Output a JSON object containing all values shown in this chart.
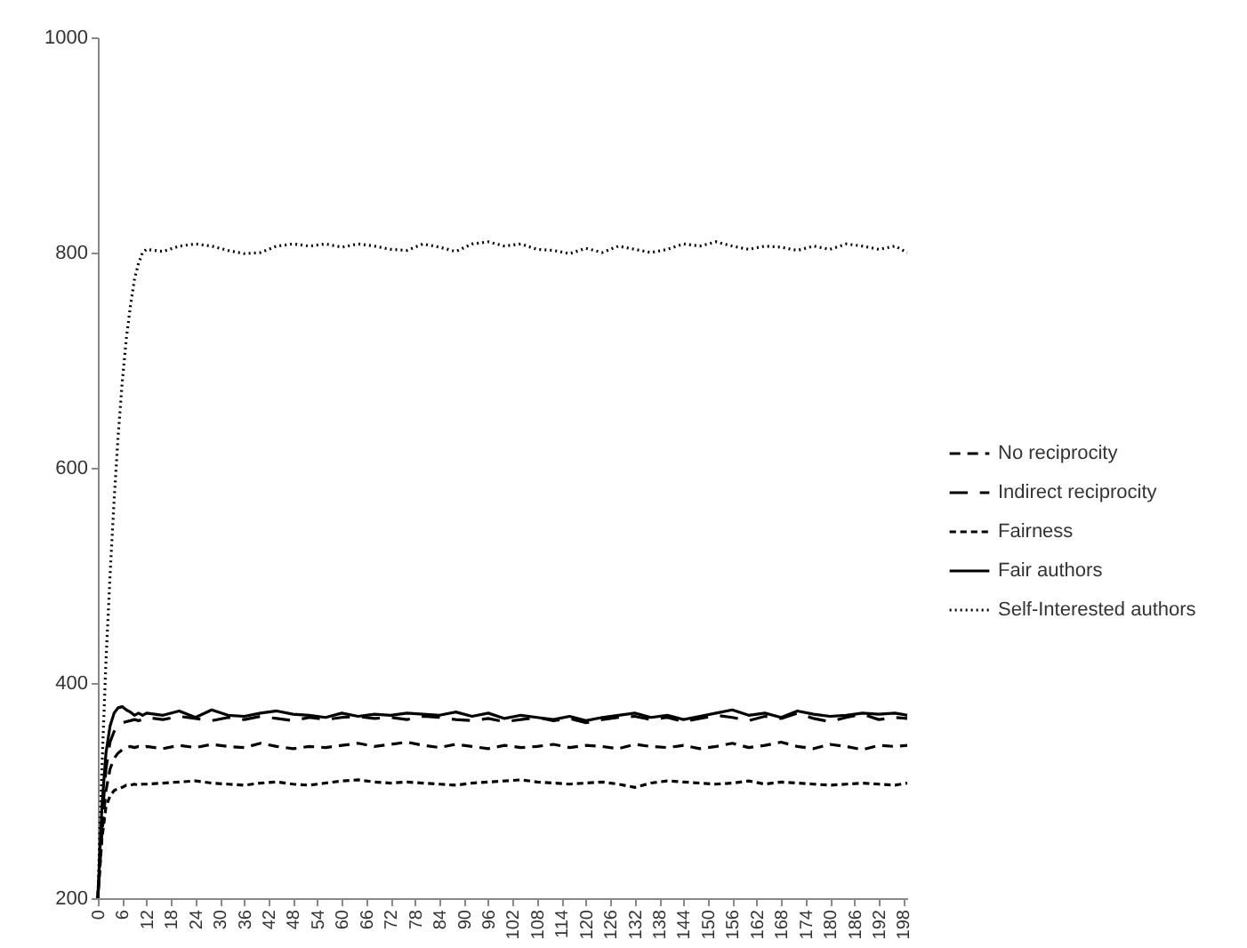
{
  "chart_data": {
    "type": "line",
    "x": [
      0,
      1,
      2,
      3,
      4,
      5,
      6,
      7,
      8,
      9,
      10,
      11,
      12,
      16,
      20,
      24,
      28,
      32,
      36,
      40,
      44,
      48,
      52,
      56,
      60,
      64,
      68,
      72,
      76,
      80,
      84,
      88,
      92,
      96,
      100,
      104,
      108,
      112,
      116,
      120,
      124,
      128,
      132,
      136,
      140,
      144,
      148,
      152,
      156,
      160,
      164,
      168,
      172,
      176,
      180,
      184,
      188,
      192,
      196,
      199
    ],
    "xlim": [
      0,
      199
    ],
    "xticks": [
      0,
      6,
      12,
      18,
      24,
      30,
      36,
      42,
      48,
      54,
      60,
      66,
      72,
      78,
      84,
      90,
      96,
      102,
      108,
      114,
      120,
      126,
      132,
      138,
      144,
      150,
      156,
      162,
      168,
      174,
      180,
      186,
      192,
      198
    ],
    "ylim": [
      200,
      1000
    ],
    "yticks": [
      200,
      400,
      600,
      800,
      1000
    ],
    "legend": "right",
    "series": [
      {
        "name": "No reciprocity",
        "color": "#000000",
        "line_style": "dashed",
        "values": [
          200,
          260,
          300,
          320,
          330,
          335,
          338,
          340,
          341,
          340,
          341,
          340,
          341,
          339,
          342,
          340,
          343,
          341,
          340,
          344,
          341,
          339,
          341,
          340,
          342,
          344,
          341,
          343,
          345,
          342,
          340,
          343,
          341,
          339,
          342,
          340,
          341,
          343,
          340,
          342,
          341,
          339,
          343,
          341,
          340,
          342,
          339,
          341,
          344,
          340,
          342,
          345,
          341,
          339,
          343,
          341,
          338,
          342,
          341,
          342
        ]
      },
      {
        "name": "Indirect reciprocity",
        "color": "#000000",
        "line_style": "dashed",
        "values": [
          200,
          270,
          320,
          345,
          355,
          360,
          363,
          364,
          365,
          366,
          365,
          366,
          368,
          366,
          369,
          367,
          365,
          368,
          366,
          369,
          367,
          365,
          368,
          366,
          368,
          369,
          367,
          368,
          366,
          369,
          368,
          366,
          365,
          367,
          364,
          366,
          368,
          365,
          367,
          363,
          366,
          368,
          369,
          366,
          368,
          364,
          367,
          370,
          368,
          365,
          369,
          367,
          372,
          367,
          364,
          368,
          371,
          366,
          368,
          367
        ]
      },
      {
        "name": "Fairness",
        "color": "#000000",
        "line_style": "dashed",
        "values": [
          200,
          255,
          285,
          295,
          300,
          302,
          303,
          305,
          305,
          306,
          305,
          306,
          306,
          307,
          308,
          309,
          307,
          306,
          305,
          307,
          308,
          306,
          305,
          307,
          309,
          310,
          308,
          307,
          308,
          307,
          306,
          305,
          307,
          308,
          309,
          310,
          308,
          307,
          306,
          307,
          308,
          306,
          303,
          307,
          309,
          308,
          307,
          306,
          307,
          309,
          306,
          308,
          307,
          306,
          305,
          306,
          307,
          306,
          305,
          307
        ]
      },
      {
        "name": "Fair authors",
        "color": "#000000",
        "line_style": "solid",
        "values": [
          200,
          285,
          335,
          360,
          372,
          377,
          378,
          375,
          373,
          370,
          372,
          370,
          372,
          370,
          374,
          368,
          375,
          370,
          369,
          372,
          374,
          371,
          370,
          368,
          372,
          369,
          371,
          370,
          372,
          371,
          370,
          373,
          369,
          372,
          367,
          370,
          368,
          366,
          369,
          365,
          368,
          370,
          372,
          368,
          370,
          366,
          369,
          372,
          375,
          370,
          372,
          368,
          374,
          371,
          369,
          370,
          372,
          371,
          372,
          370
        ]
      },
      {
        "name": "Self-Interested authors",
        "color": "#000000",
        "line_style": "dotted",
        "values": [
          200,
          320,
          420,
          500,
          570,
          630,
          680,
          720,
          750,
          775,
          790,
          800,
          803,
          801,
          806,
          808,
          806,
          802,
          799,
          800,
          806,
          808,
          806,
          808,
          805,
          808,
          806,
          803,
          802,
          808,
          805,
          801,
          808,
          810,
          806,
          808,
          803,
          802,
          799,
          804,
          800,
          806,
          803,
          800,
          803,
          808,
          806,
          810,
          806,
          803,
          806,
          805,
          802,
          806,
          803,
          808,
          806,
          803,
          806,
          800
        ]
      }
    ]
  }
}
